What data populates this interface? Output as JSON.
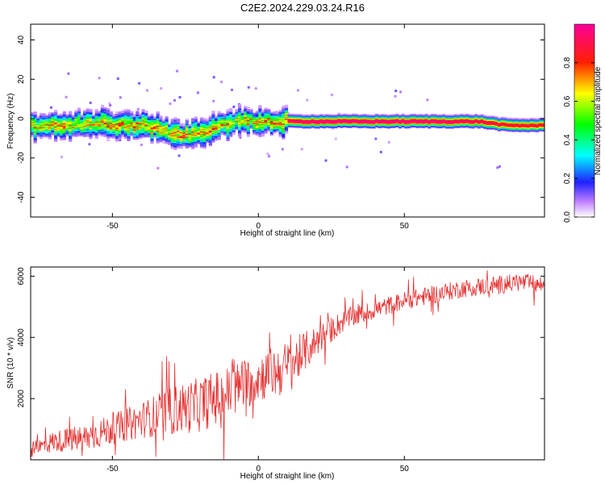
{
  "chart_data": [
    {
      "type": "heatmap",
      "title": "C2E2.2024.229.03.24.R16",
      "xlabel": "Height of straight line (km)",
      "ylabel": "Frequency (Hz)",
      "xlim": [
        -78,
        98
      ],
      "ylim": [
        -50,
        48
      ],
      "xticks": [
        -50,
        0,
        50
      ],
      "yticks": [
        -40,
        -20,
        0,
        20,
        40
      ],
      "colorbar": {
        "label": "Normalized spectral amplitude",
        "range": [
          0.0,
          1.0
        ],
        "ticks": [
          "0.0",
          "0.2",
          "0.4",
          "0.6",
          "0.8"
        ]
      },
      "ridge": {
        "description": "dominant signal frequency vs height",
        "x": [
          -78,
          -70,
          -62,
          -55,
          -50,
          -45,
          -40,
          -35,
          -30,
          -27,
          -22,
          -17,
          -12,
          -8,
          -5,
          0,
          5,
          8,
          20,
          40,
          60,
          75,
          85,
          98
        ],
        "freq": [
          -3,
          -3,
          -2,
          -2,
          -3,
          -3,
          -3,
          -5,
          -7,
          -8,
          -7,
          -5,
          -3,
          -1,
          -1,
          -1,
          -2,
          -1,
          -1,
          -1,
          -1,
          -1,
          -3,
          -3
        ],
        "peak": [
          0.75,
          0.85,
          0.8,
          0.8,
          0.9,
          0.85,
          0.85,
          0.9,
          0.8,
          0.95,
          0.8,
          0.85,
          0.8,
          0.75,
          0.8,
          0.85,
          0.9,
          0.95,
          1.0,
          1.0,
          1.0,
          0.95,
          0.9,
          0.9
        ]
      }
    },
    {
      "type": "line",
      "title": "",
      "xlabel": "Height of straight line (km)",
      "ylabel": "SNR (10 * v/v)",
      "xlim": [
        -78,
        98
      ],
      "ylim": [
        0,
        6300
      ],
      "xticks": [
        -50,
        0,
        50
      ],
      "yticks": [
        2000,
        4000,
        6000
      ],
      "series": [
        {
          "color": "#e53030",
          "trend_x": [
            -78,
            -70,
            -60,
            -50,
            -40,
            -30,
            -20,
            -10,
            0,
            10,
            20,
            30,
            40,
            50,
            60,
            70,
            80,
            90,
            98
          ],
          "trend_y": [
            300,
            600,
            700,
            1000,
            1300,
            1600,
            1800,
            2200,
            2700,
            3000,
            3900,
            4600,
            4900,
            5200,
            5400,
            5600,
            5700,
            5800,
            5700
          ],
          "noise_amplitude": [
            250,
            350,
            450,
            500,
            600,
            800,
            900,
            900,
            800,
            900,
            500,
            350,
            300,
            300,
            300,
            300,
            300,
            300,
            300
          ],
          "n_points": 900
        }
      ]
    }
  ]
}
